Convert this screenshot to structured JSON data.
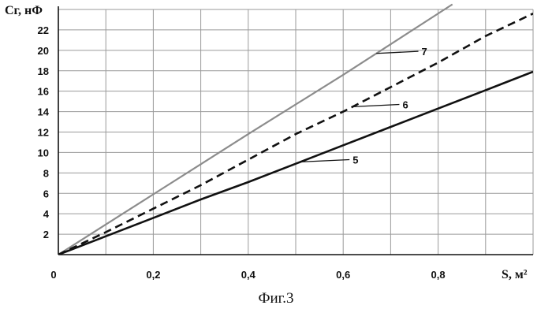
{
  "chart_data": {
    "type": "line",
    "ylabel": "Cг, нФ",
    "xlabel": "S, м²",
    "xlim": [
      0,
      1.0
    ],
    "ylim": [
      0,
      24
    ],
    "x_ticks": [
      "0",
      "0,2",
      "0,4",
      "0,6",
      "0,8"
    ],
    "x_tick_values": [
      0,
      0.2,
      0.4,
      0.6,
      0.8
    ],
    "y_ticks": [
      "2",
      "4",
      "6",
      "8",
      "10",
      "12",
      "14",
      "16",
      "18",
      "20",
      "22"
    ],
    "y_tick_values": [
      2,
      4,
      6,
      8,
      10,
      12,
      14,
      16,
      18,
      20,
      22
    ],
    "grid": true,
    "series": [
      {
        "name": "7",
        "color": "#8c8c8c",
        "style": "solid",
        "x": [
          0,
          0.2,
          0.4,
          0.6,
          0.83
        ],
        "y": [
          0,
          5.9,
          11.8,
          17.6,
          24.5
        ]
      },
      {
        "name": "6",
        "color": "#111111",
        "style": "dashed",
        "x": [
          0,
          0.1,
          0.2,
          0.3,
          0.4,
          0.5,
          0.6,
          0.7,
          0.8,
          0.9,
          1.0
        ],
        "y": [
          0,
          2.2,
          4.5,
          6.8,
          9.3,
          11.8,
          14.0,
          16.4,
          18.8,
          21.4,
          23.6
        ]
      },
      {
        "name": "5",
        "color": "#111111",
        "style": "solid",
        "x": [
          0,
          0.1,
          0.2,
          0.3,
          0.4,
          0.5,
          0.6,
          0.7,
          0.8,
          0.9,
          1.0
        ],
        "y": [
          0,
          1.8,
          3.6,
          5.4,
          7.1,
          8.9,
          10.7,
          12.5,
          14.3,
          16.1,
          17.9
        ]
      }
    ]
  },
  "caption": "Фиг.3"
}
